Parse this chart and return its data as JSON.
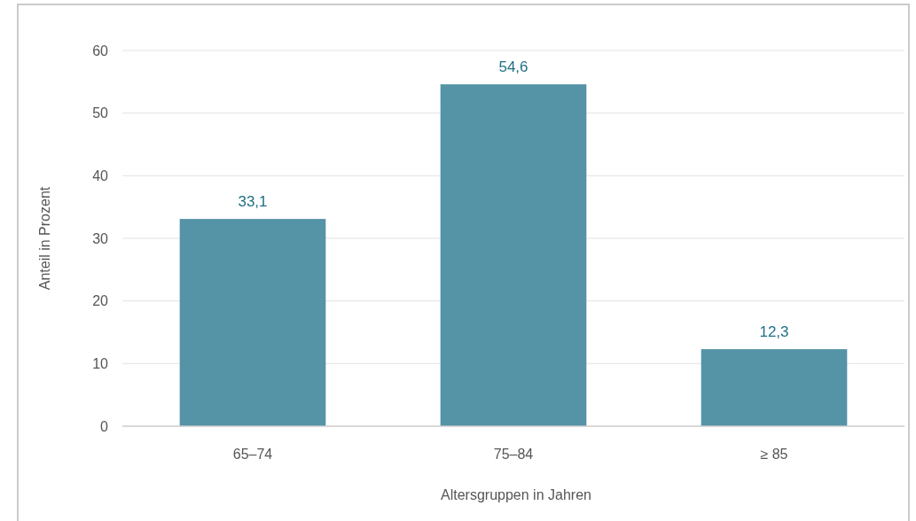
{
  "chart_data": {
    "type": "bar",
    "xlabel": "Altersgruppen in Jahren",
    "ylabel": "Anteil in Prozent",
    "categories": [
      "65–74",
      "75–84",
      "≥ 85"
    ],
    "values": [
      33.1,
      54.6,
      12.3
    ],
    "value_labels": [
      "33,1",
      "54,6",
      "12,3"
    ],
    "color": "#5593a7",
    "ylim": [
      0,
      60
    ],
    "yticks": [
      0,
      10,
      20,
      30,
      40,
      50,
      60
    ],
    "grid": "y"
  }
}
